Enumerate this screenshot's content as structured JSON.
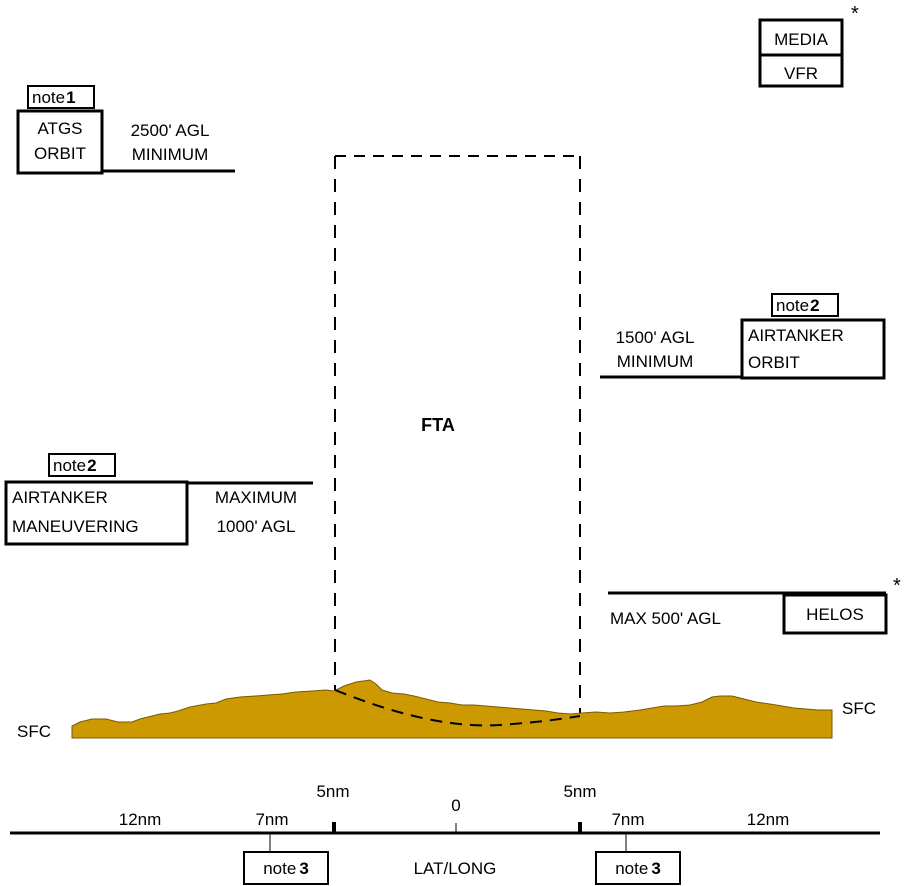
{
  "colors": {
    "terrain": "#CC9900",
    "ink": "#000000",
    "background": "#FFFFFF"
  },
  "media": {
    "line1": "MEDIA",
    "line2": "VFR",
    "asterisk": "*"
  },
  "atgs": {
    "note_word": "note",
    "note_num": "1",
    "box_line1": "ATGS",
    "box_line2": "ORBIT",
    "alt_line1": "2500' AGL",
    "alt_line2": "MINIMUM"
  },
  "airtanker_orbit": {
    "note_word": "note",
    "note_num": "2",
    "alt_line1": "1500' AGL",
    "alt_line2": "MINIMUM",
    "box_line1": "AIRTANKER",
    "box_line2": "ORBIT"
  },
  "fta": {
    "label": "FTA"
  },
  "airtanker_maneuvering": {
    "note_word": "note",
    "note_num": "2",
    "box_line1": "AIRTANKER",
    "box_line2": "MANEUVERING",
    "alt_line1": "MAXIMUM",
    "alt_line2": "1000' AGL"
  },
  "helos": {
    "alt": "MAX 500' AGL",
    "box": "HELOS",
    "asterisk": "*"
  },
  "surface": {
    "left": "SFC",
    "right": "SFC"
  },
  "scale": {
    "labels": [
      "12nm",
      "7nm",
      "5nm",
      "0",
      "5nm",
      "7nm",
      "12nm"
    ],
    "center": "LAT/LONG",
    "note_word": "note",
    "note_num": "3"
  }
}
